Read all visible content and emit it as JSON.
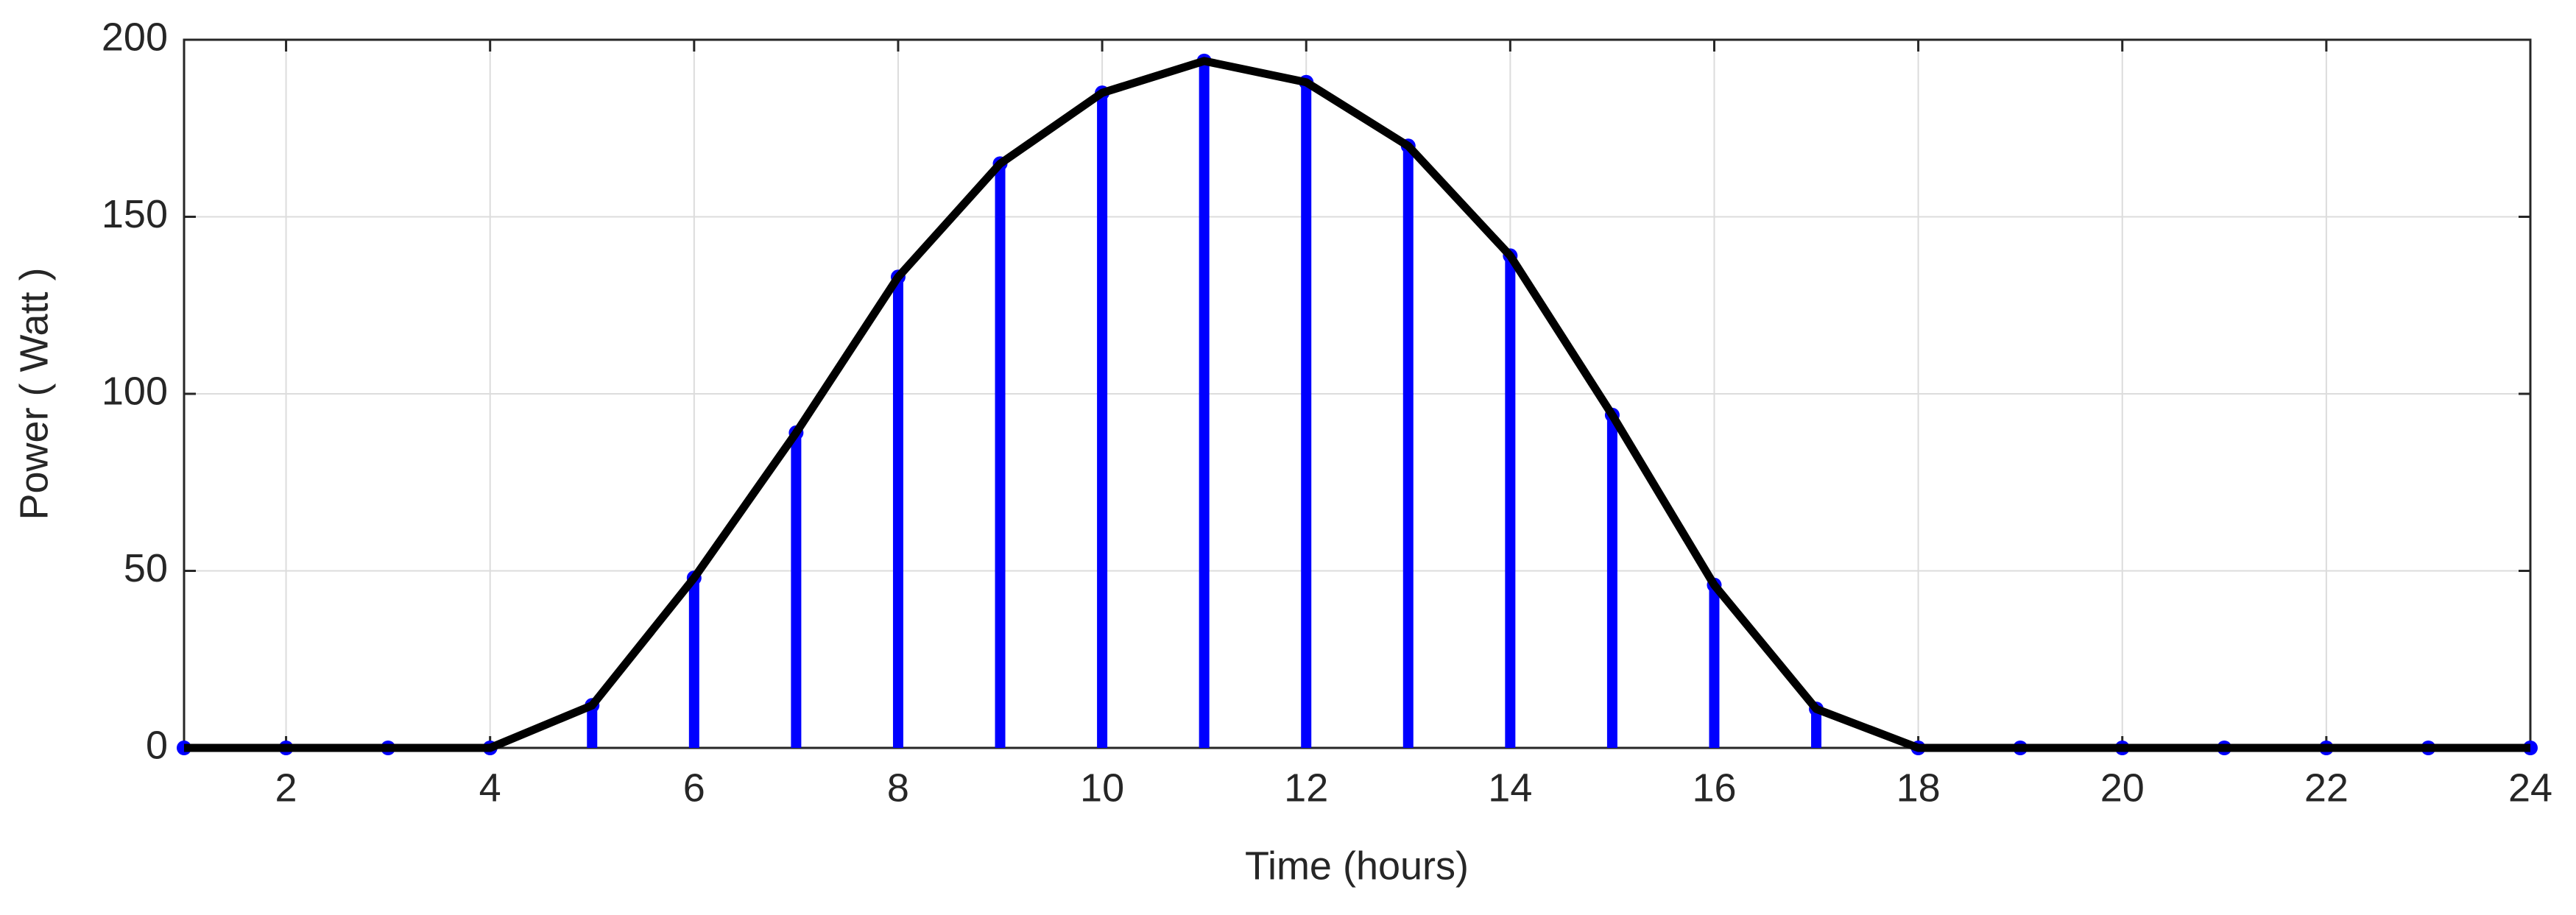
{
  "chart_data": {
    "type": "stem",
    "xlabel": "Time (hours)",
    "ylabel": "Power ( Watt )",
    "x": [
      1,
      2,
      3,
      4,
      5,
      6,
      7,
      8,
      9,
      10,
      11,
      12,
      13,
      14,
      15,
      16,
      17,
      18,
      19,
      20,
      21,
      22,
      23,
      24
    ],
    "values": [
      0,
      0,
      0,
      0,
      12,
      48,
      89,
      133,
      165,
      185,
      194,
      188,
      170,
      139,
      94,
      46,
      11,
      0,
      0,
      0,
      0,
      0,
      0,
      0
    ],
    "stem_color": "#0000ff",
    "line_color": "#000000",
    "xlim": [
      1,
      24
    ],
    "xticks": [
      2,
      4,
      6,
      8,
      10,
      12,
      14,
      16,
      18,
      20,
      22,
      24
    ],
    "ylim": [
      0,
      200
    ],
    "yticks": [
      0,
      50,
      100,
      150,
      200
    ],
    "grid": true
  }
}
